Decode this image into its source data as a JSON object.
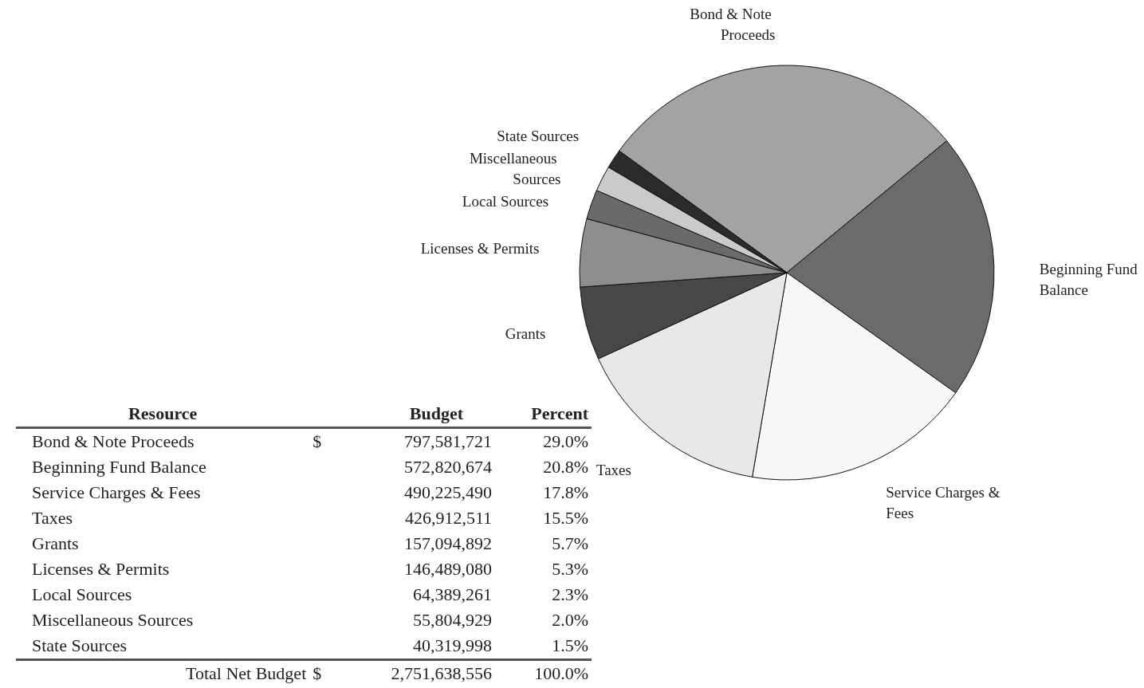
{
  "chart_data": [
    {
      "type": "pie",
      "categories": [
        "Bond & Note Proceeds",
        "Beginning Fund Balance",
        "Service Charges & Fees",
        "Taxes",
        "Grants",
        "Licenses & Permits",
        "Local Sources",
        "Miscellaneous Sources",
        "State Sources"
      ],
      "values": [
        29.0,
        20.8,
        17.8,
        15.5,
        5.7,
        5.3,
        2.3,
        2.0,
        1.5
      ],
      "colors": [
        "#a3a3a3",
        "#6b6b6b",
        "#f7f7f7",
        "#e8e8e8",
        "#474747",
        "#8e8e8e",
        "#6a6a6a",
        "#cacaca",
        "#2b2b2b"
      ],
      "legend": false
    },
    {
      "type": "other",
      "categories": [
        "Bond & Note Proceeds",
        "Beginning Fund Balance",
        "Service Charges & Fees",
        "Taxes",
        "Grants",
        "Licenses & Permits",
        "Local Sources",
        "Miscellaneous Sources",
        "State Sources"
      ],
      "series": [
        {
          "name": "Budget",
          "values": [
            797581721,
            572820674,
            490225490,
            426912511,
            157094892,
            146489080,
            64389261,
            55804929,
            40319998
          ],
          "value_labels": [
            "797,581,721",
            "572,820,674",
            "490,225,490",
            "426,912,511",
            "157,094,892",
            "146,489,080",
            "64,389,261",
            "55,804,929",
            "40,319,998"
          ]
        },
        {
          "name": "Percent",
          "values": [
            29.0,
            20.8,
            17.8,
            15.5,
            5.7,
            5.3,
            2.3,
            2.0,
            1.5
          ],
          "value_labels": [
            "29.0%",
            "20.8%",
            "17.8%",
            "15.5%",
            "5.7%",
            "5.3%",
            "2.3%",
            "2.0%",
            "1.5%"
          ]
        }
      ],
      "data_labels": true,
      "annotations": [
        "Resource",
        "Total Net Budget",
        "$"
      ],
      "totals": [
        "2,751,638,556",
        "100.0%"
      ]
    }
  ]
}
